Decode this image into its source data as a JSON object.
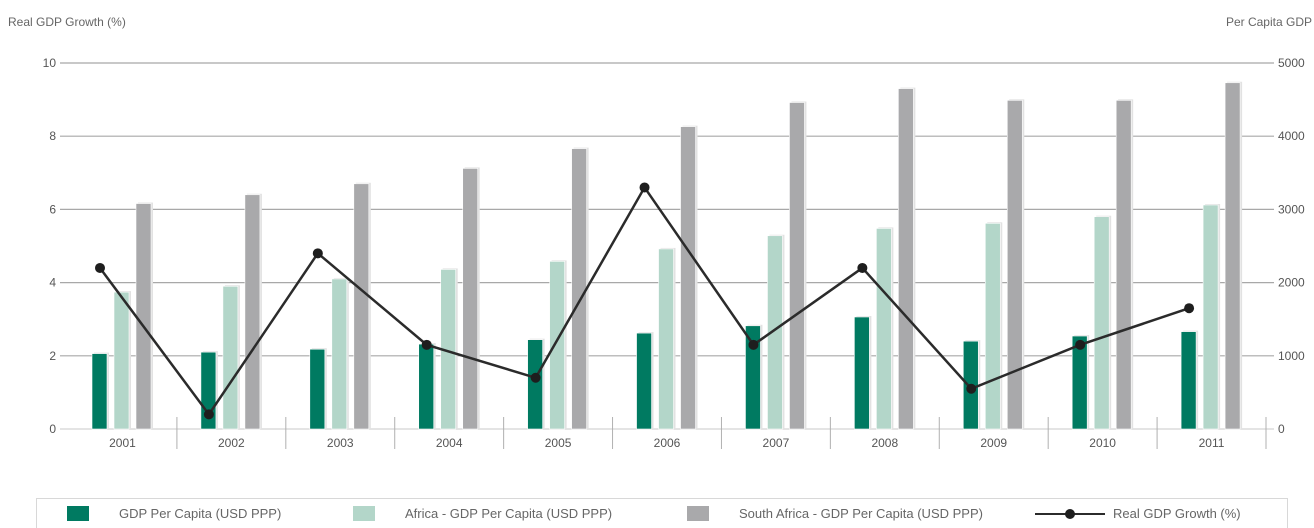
{
  "chart_data": {
    "type": "bar",
    "categories": [
      "2001",
      "2002",
      "2003",
      "2004",
      "2005",
      "2006",
      "2007",
      "2008",
      "2009",
      "2010",
      "2011"
    ],
    "y_left": {
      "label": "Real GDP Growth (%)",
      "range": [
        0,
        10
      ],
      "ticks": [
        "0",
        "2",
        "4",
        "6",
        "8",
        "10"
      ]
    },
    "y_right": {
      "label": "Per Capita GDP",
      "range": [
        0,
        5000
      ],
      "ticks": [
        "0",
        "1000",
        "2000",
        "3000",
        "4000",
        "5000"
      ]
    },
    "series": [
      {
        "name": "GDP Per Capita (USD PPP)",
        "type": "bar",
        "axis": "right",
        "color": "#007a61",
        "values": [
          1030,
          1050,
          1090,
          1160,
          1220,
          1310,
          1410,
          1530,
          1200,
          1270,
          1330
        ]
      },
      {
        "name": "Africa - GDP Per Capita (USD PPP)",
        "type": "bar",
        "axis": "right",
        "color": "#b3d6c9",
        "values": [
          1870,
          1950,
          2050,
          2180,
          2290,
          2460,
          2640,
          2740,
          2810,
          2900,
          3060
        ]
      },
      {
        "name": "South Africa - GDP Per Capita (USD PPP)",
        "type": "bar",
        "axis": "right",
        "color": "#a9a9ab",
        "values": [
          3080,
          3200,
          3350,
          3560,
          3830,
          4130,
          4460,
          4650,
          4490,
          4490,
          4730
        ]
      },
      {
        "name": "Real GDP Growth (%)",
        "type": "line",
        "axis": "left",
        "color": "#2b2b2b",
        "values": [
          4.4,
          0.4,
          4.8,
          2.3,
          1.4,
          6.6,
          2.3,
          4.4,
          1.1,
          2.3,
          3.3
        ]
      }
    ],
    "grid": true,
    "legend_position": "bottom"
  },
  "colors": {
    "grid": "#a8a8a8",
    "axis_text": "#555555"
  }
}
